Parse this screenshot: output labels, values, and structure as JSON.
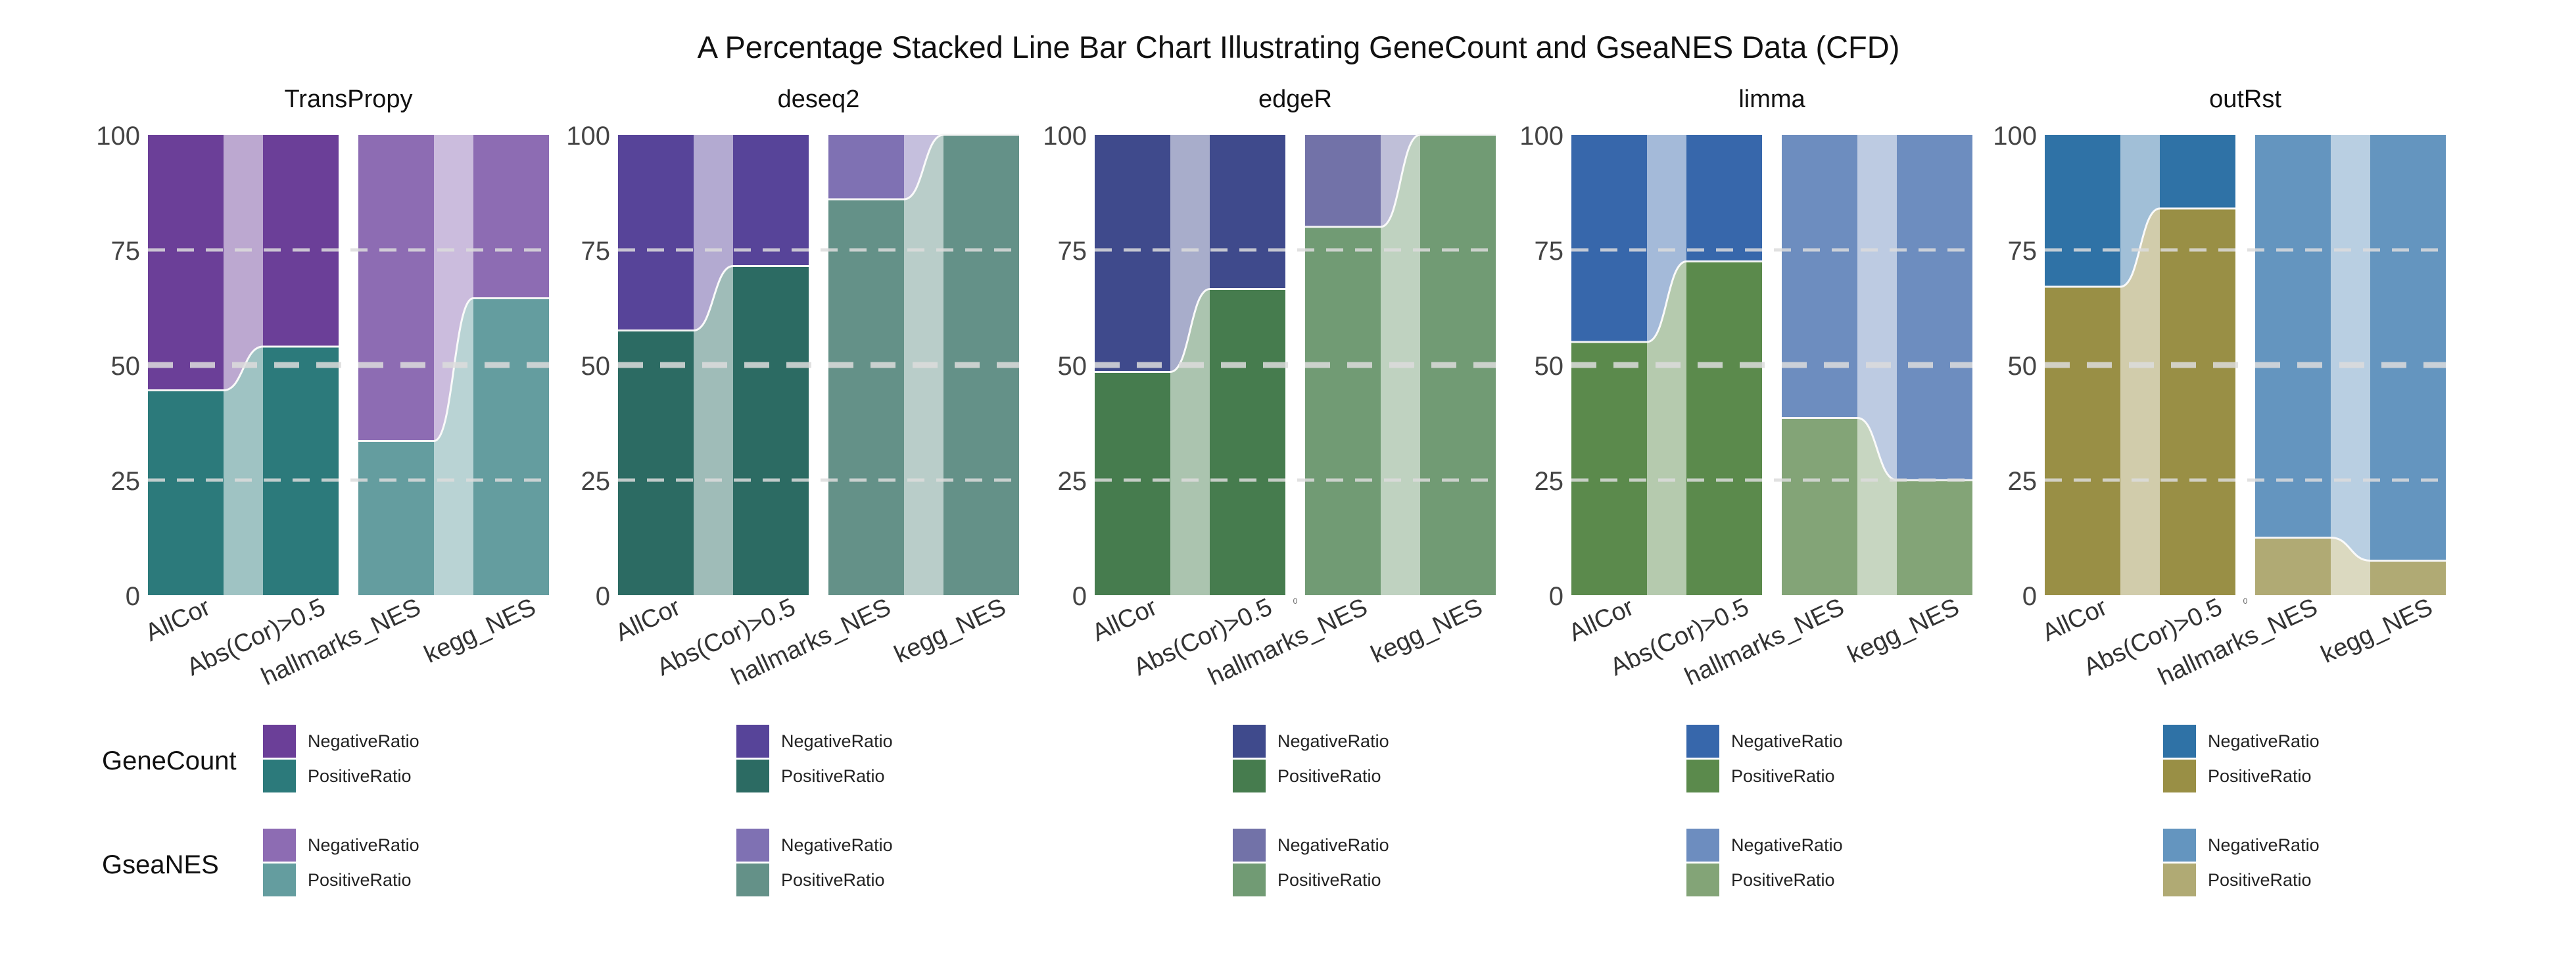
{
  "chart_data": {
    "type": "area",
    "title": "A Percentage Stacked Line Bar Chart Illustrating GeneCount and GseaNES Data (CFD)",
    "ylim": [
      0,
      100
    ],
    "yticks": [
      "0",
      "25",
      "50",
      "75",
      "100"
    ],
    "grid": "dashed horizontal at 25, 50, 75",
    "x_labels": [
      "AllCor",
      "Abs(Cor)>0.5",
      "hallmarks_NES",
      "kegg_NES"
    ],
    "groups": [
      "GeneCount",
      "GseaNES"
    ],
    "legend_labels": [
      "NegativeRatio",
      "PositiveRatio"
    ],
    "small_zero_label": "0",
    "panels": [
      {
        "method": "TransPropy",
        "GeneCount": {
          "categories": [
            "AllCor",
            "Abs(Cor)>0.5"
          ],
          "PositiveRatio": [
            44.5,
            54
          ],
          "NegativeRatio": [
            55.5,
            46
          ]
        },
        "GseaNES": {
          "categories": [
            "hallmarks_NES",
            "kegg_NES"
          ],
          "PositiveRatio": [
            33.5,
            64.5
          ],
          "NegativeRatio": [
            66.5,
            35.5
          ]
        },
        "colors": {
          "gc_neg": "#6b3f98",
          "gc_pos": "#2c7a7b",
          "gs_neg": "#8d6cb3",
          "gs_pos": "#649d9f"
        }
      },
      {
        "method": "deseq2",
        "GeneCount": {
          "categories": [
            "AllCor",
            "Abs(Cor)>0.5"
          ],
          "PositiveRatio": [
            57.5,
            71.5
          ],
          "NegativeRatio": [
            42.5,
            28.5
          ]
        },
        "GseaNES": {
          "categories": [
            "hallmarks_NES",
            "kegg_NES"
          ],
          "PositiveRatio": [
            86,
            100
          ],
          "NegativeRatio": [
            14,
            0
          ]
        },
        "colors": {
          "gc_neg": "#574499",
          "gc_pos": "#2c6b63",
          "gs_neg": "#7f71b3",
          "gs_pos": "#649188"
        }
      },
      {
        "method": "edgeR",
        "GeneCount": {
          "categories": [
            "AllCor",
            "Abs(Cor)>0.5"
          ],
          "PositiveRatio": [
            48.5,
            66.5
          ],
          "NegativeRatio": [
            51.5,
            33.5
          ]
        },
        "GseaNES": {
          "categories": [
            "hallmarks_NES",
            "kegg_NES"
          ],
          "PositiveRatio": [
            80,
            100
          ],
          "NegativeRatio": [
            20,
            0
          ]
        },
        "colors": {
          "gc_neg": "#3f4a8c",
          "gc_pos": "#467c4e",
          "gs_neg": "#7272a8",
          "gs_pos": "#719b74"
        }
      },
      {
        "method": "limma",
        "GeneCount": {
          "categories": [
            "AllCor",
            "Abs(Cor)>0.5"
          ],
          "PositiveRatio": [
            55,
            72.5
          ],
          "NegativeRatio": [
            45,
            27.5
          ]
        },
        "GseaNES": {
          "categories": [
            "hallmarks_NES",
            "kegg_NES"
          ],
          "PositiveRatio": [
            38.5,
            25
          ],
          "NegativeRatio": [
            61.5,
            75
          ]
        },
        "colors": {
          "gc_neg": "#3767ab",
          "gc_pos": "#5b8a4c",
          "gs_neg": "#6d8dbf",
          "gs_pos": "#83a477"
        }
      },
      {
        "method": "outRst",
        "GeneCount": {
          "categories": [
            "AllCor",
            "Abs(Cor)>0.5"
          ],
          "PositiveRatio": [
            67,
            84
          ],
          "NegativeRatio": [
            33,
            16
          ]
        },
        "GseaNES": {
          "categories": [
            "hallmarks_NES",
            "kegg_NES"
          ],
          "PositiveRatio": [
            12.5,
            7.5
          ],
          "NegativeRatio": [
            87.5,
            92.5
          ]
        },
        "colors": {
          "gc_neg": "#2f72a6",
          "gc_pos": "#998f45",
          "gs_neg": "#6495bf",
          "gs_pos": "#b0aa74"
        }
      }
    ]
  }
}
